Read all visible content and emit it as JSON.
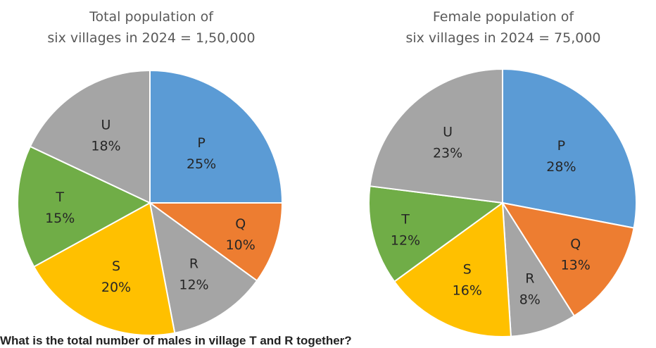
{
  "chart_data": [
    {
      "type": "pie",
      "title_lines": [
        "Total population of",
        "six villages in 2024 = 1,50,000"
      ],
      "slices": [
        {
          "label": "P",
          "value": 25,
          "value_text": "25%",
          "color": "#5B9BD5"
        },
        {
          "label": "Q",
          "value": 10,
          "value_text": "10%",
          "color": "#ED7D31"
        },
        {
          "label": "R",
          "value": 12,
          "value_text": "12%",
          "color": "#A5A5A5"
        },
        {
          "label": "S",
          "value": 20,
          "value_text": "20%",
          "color": "#FFC000"
        },
        {
          "label": "T",
          "value": 15,
          "value_text": "15%",
          "color": "#70AD47"
        },
        {
          "label": "U",
          "value": 18,
          "value_text": "18%",
          "color": "#A5A5A5"
        }
      ]
    },
    {
      "type": "pie",
      "title_lines": [
        "Female population of",
        "six villages in 2024 = 75,000"
      ],
      "slices": [
        {
          "label": "P",
          "value": 28,
          "value_text": "28%",
          "color": "#5B9BD5"
        },
        {
          "label": "Q",
          "value": 13,
          "value_text": "13%",
          "color": "#ED7D31"
        },
        {
          "label": "R",
          "value": 8,
          "value_text": "8%",
          "color": "#A5A5A5"
        },
        {
          "label": "S",
          "value": 16,
          "value_text": "16%",
          "color": "#FFC000"
        },
        {
          "label": "T",
          "value": 12,
          "value_text": "12%",
          "color": "#70AD47"
        },
        {
          "label": "U",
          "value": 23,
          "value_text": "23%",
          "color": "#A5A5A5"
        }
      ]
    }
  ],
  "question": "What is the total number of males in village T and R together?"
}
